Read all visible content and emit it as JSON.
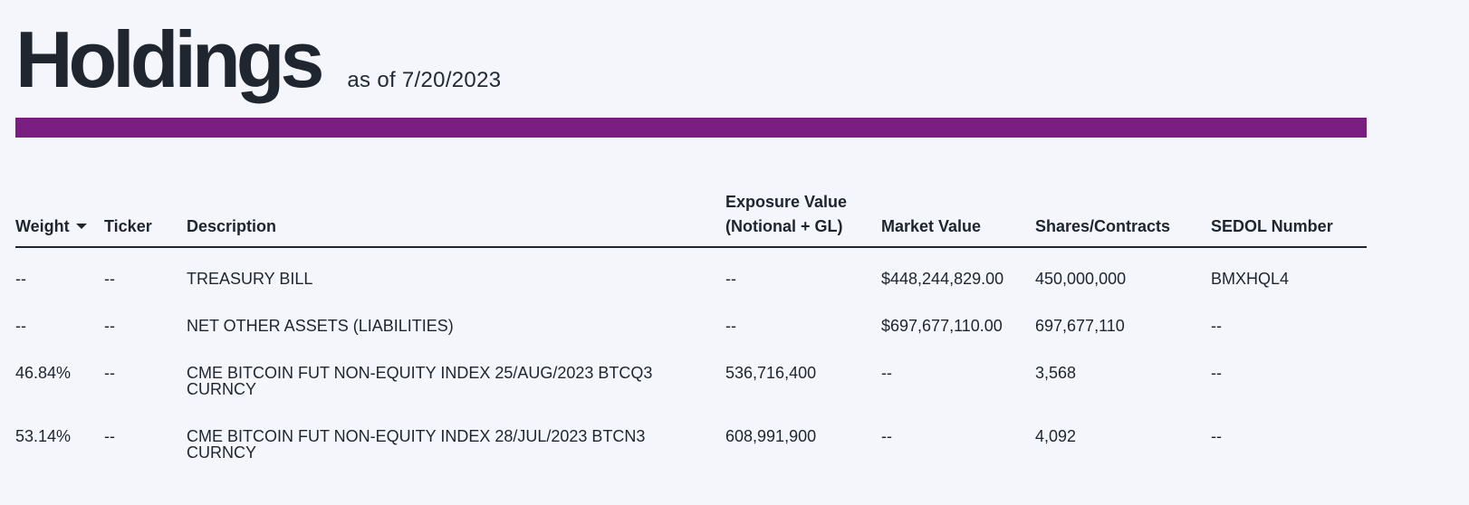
{
  "header": {
    "title": "Holdings",
    "as_of": "as of 7/20/2023"
  },
  "colors": {
    "accent": "#7b1e82",
    "text": "#1e252e",
    "background": "#f5f6fb"
  },
  "table": {
    "columns": {
      "weight": "Weight",
      "ticker": "Ticker",
      "description": "Description",
      "exposure_line1": "Exposure Value",
      "exposure_line2": "(Notional + GL)",
      "market_value": "Market Value",
      "shares": "Shares/Contracts",
      "sedol": "SEDOL Number"
    },
    "sort_icon": "caret-down-icon",
    "rows": [
      {
        "weight": "--",
        "ticker": "--",
        "description": "TREASURY BILL",
        "exposure": "--",
        "market_value": "$448,244,829.00",
        "shares": "450,000,000",
        "sedol": "BMXHQL4"
      },
      {
        "weight": "--",
        "ticker": "--",
        "description": "NET OTHER ASSETS (LIABILITIES)",
        "exposure": "--",
        "market_value": "$697,677,110.00",
        "shares": "697,677,110",
        "sedol": "--"
      },
      {
        "weight": "46.84%",
        "ticker": "--",
        "description_line1": "CME BITCOIN FUT NON-EQUITY INDEX 25/AUG/2023 BTCQ3",
        "description_line2": "CURNCY",
        "exposure": "536,716,400",
        "market_value": "--",
        "shares": "3,568",
        "sedol": "--"
      },
      {
        "weight": "53.14%",
        "ticker": "--",
        "description_line1": "CME BITCOIN FUT NON-EQUITY INDEX 28/JUL/2023 BTCN3",
        "description_line2": "CURNCY",
        "exposure": "608,991,900",
        "market_value": "--",
        "shares": "4,092",
        "sedol": "--"
      }
    ]
  }
}
